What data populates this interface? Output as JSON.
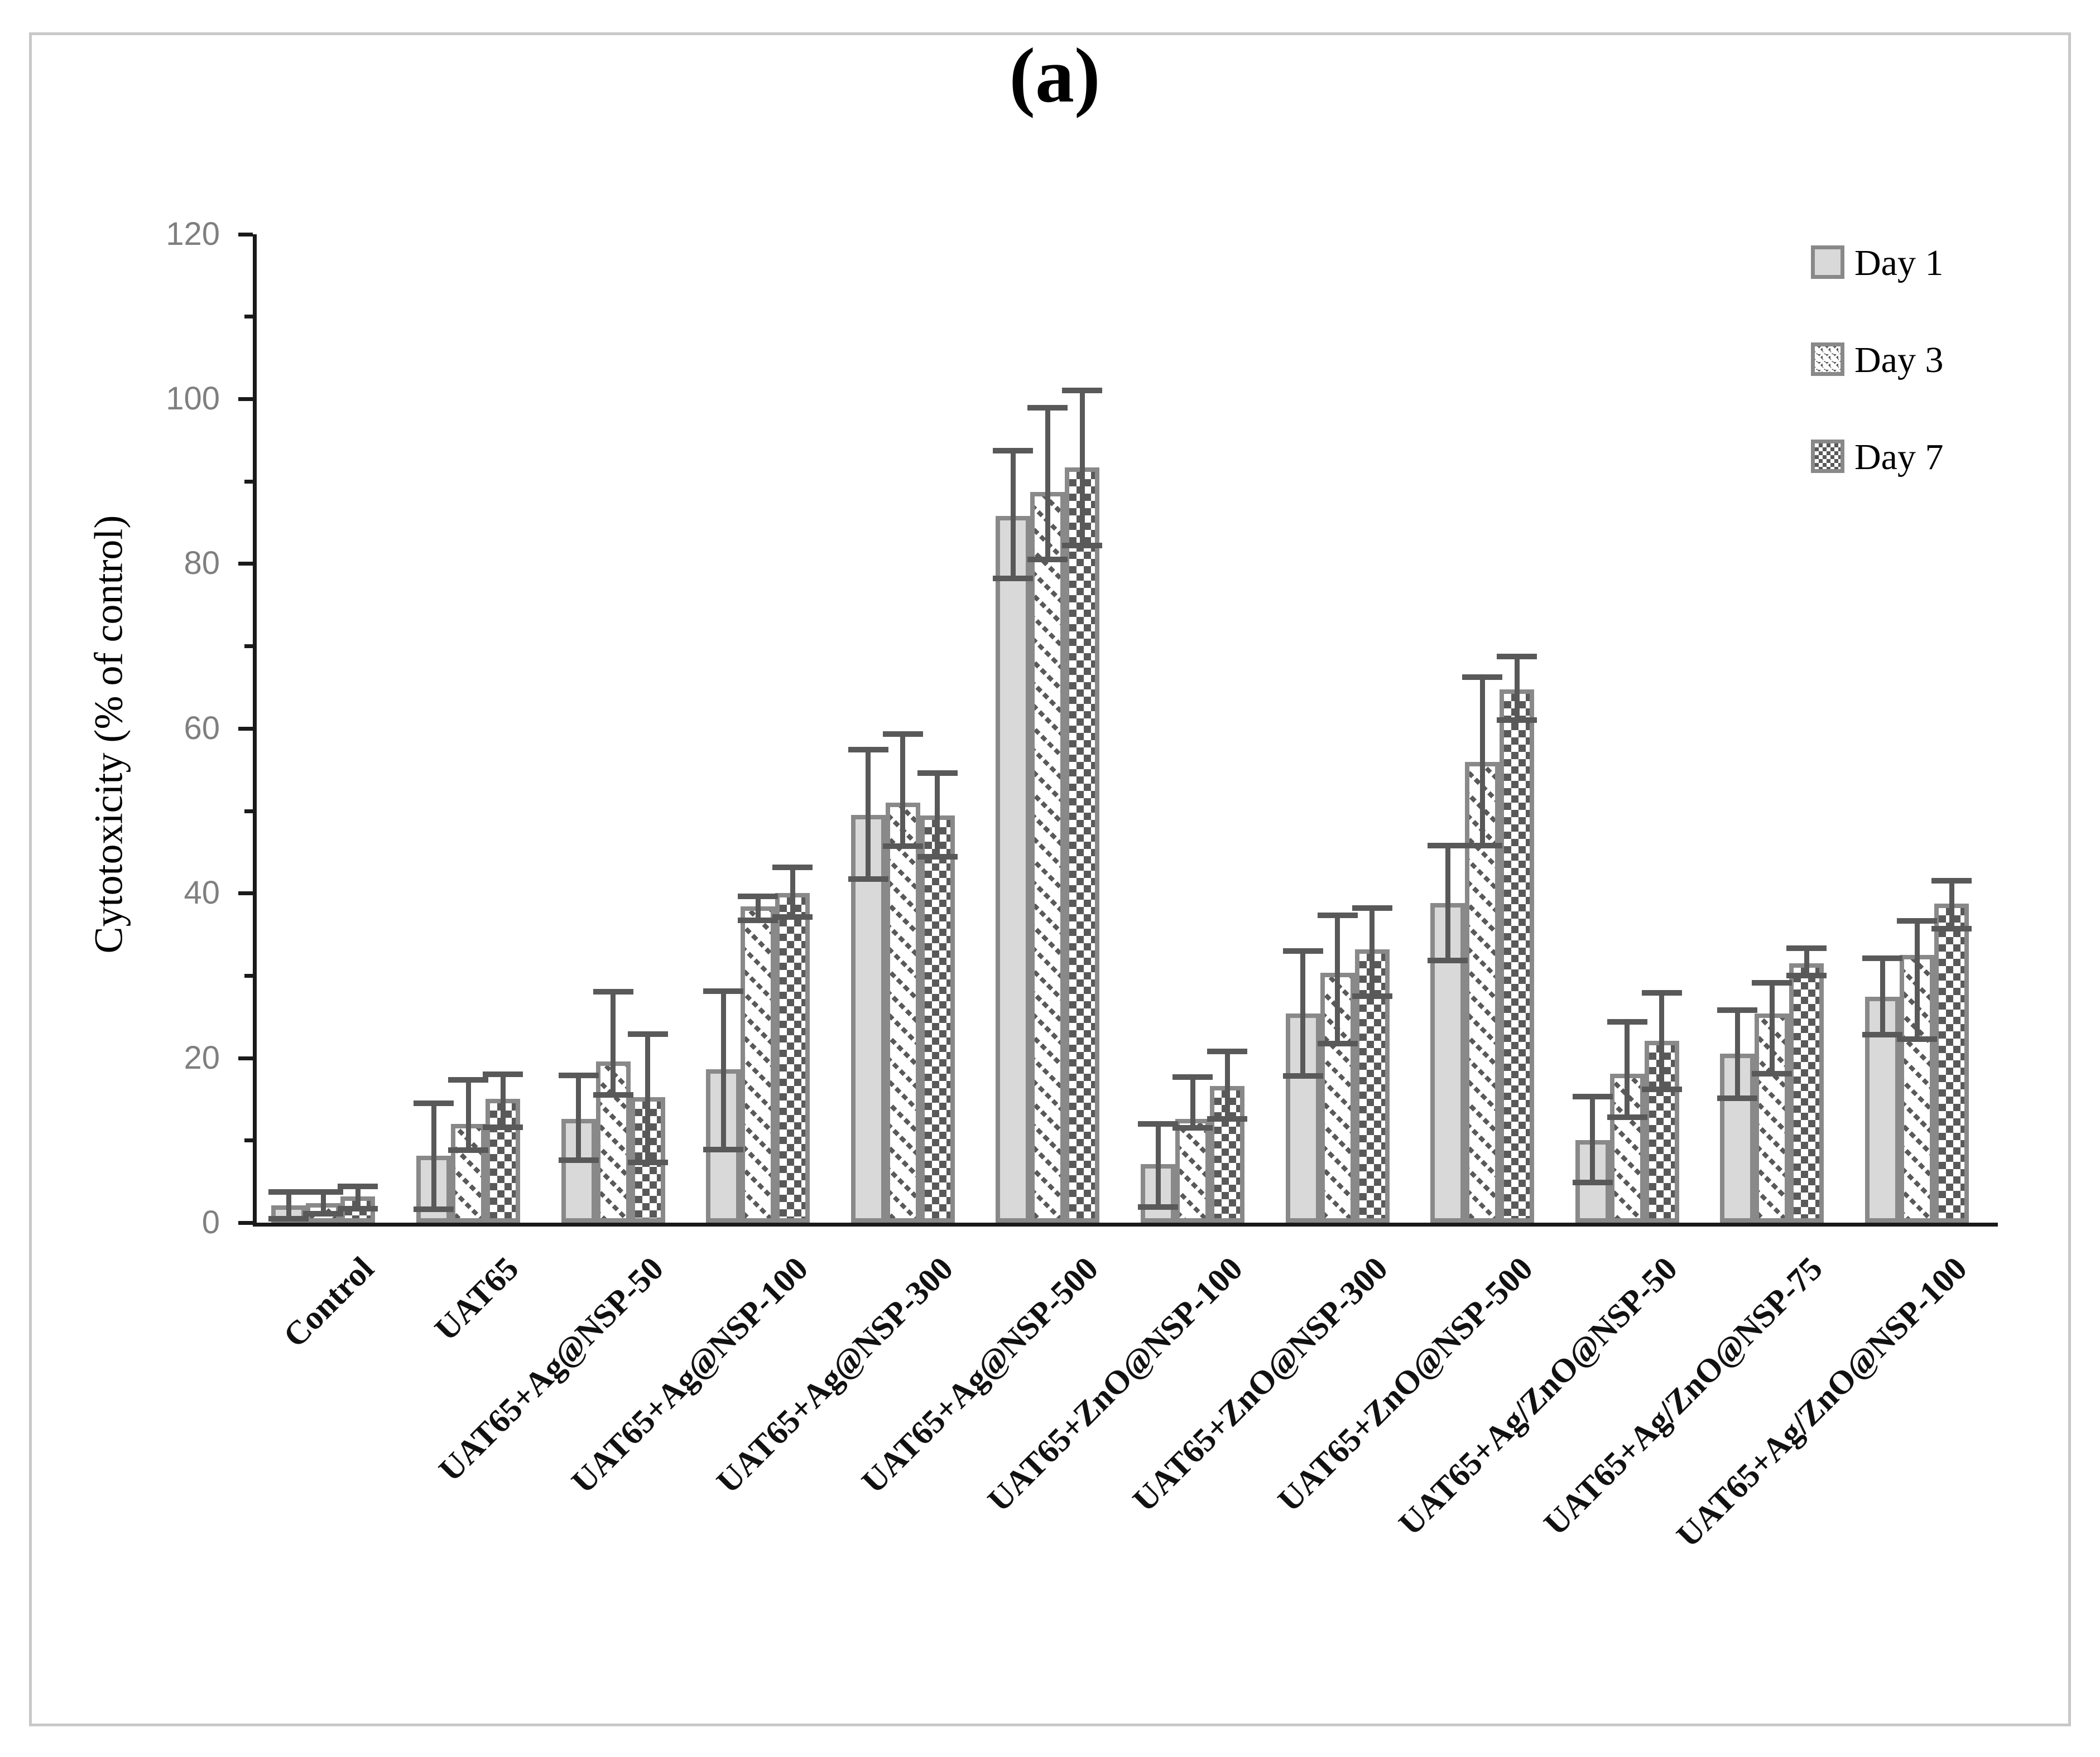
{
  "figure": {
    "title": "(a)",
    "panel_label": "(a)"
  },
  "chart_data": {
    "type": "bar",
    "title": "(a)",
    "xlabel": "",
    "ylabel": "Cytotoxicity (% of control)",
    "ylim": [
      0,
      120
    ],
    "ytick_step": 20,
    "ytick_minor_step": 10,
    "ytick_labels": [
      "0",
      "20",
      "40",
      "60",
      "80",
      "100",
      "120"
    ],
    "grid": false,
    "legend_position": "top-right",
    "categories": [
      "Control",
      "UAT65",
      "UAT65+Ag@NSP-50",
      "UAT65+Ag@NSP-100",
      "UAT65+Ag@NSP-300",
      "UAT65+Ag@NSP-500",
      "UAT65+ZnO@NSP-100",
      "UAT65+ZnO@NSP-300",
      "UAT65+ZnO@NSP-500",
      "UAT65+Ag/ZnO@NSP-50",
      "UAT65+Ag/ZnO@NSP-75",
      "UAT65+Ag/ZnO@NSP-100"
    ],
    "series": [
      {
        "name": "Day 1",
        "pattern": "solid-light-gray",
        "values": [
          2.1,
          8.1,
          12.6,
          18.6,
          49.5,
          85.8,
          7.1,
          25.4,
          38.8,
          10.0,
          20.5,
          27.4
        ],
        "err_up": [
          1.6,
          6.4,
          5.3,
          9.5,
          7.9,
          7.9,
          4.9,
          7.6,
          7.0,
          5.3,
          5.3,
          4.7
        ],
        "err_down": [
          1.6,
          6.5,
          5.0,
          9.7,
          7.8,
          7.6,
          5.2,
          7.6,
          7.0,
          5.1,
          5.4,
          4.6
        ]
      },
      {
        "name": "Day 3",
        "pattern": "diagonal-hatch",
        "values": [
          2.4,
          12.0,
          19.6,
          38.4,
          51.0,
          88.7,
          12.6,
          30.3,
          55.9,
          18.1,
          25.4,
          32.5
        ],
        "err_up": [
          1.3,
          5.3,
          8.4,
          1.2,
          8.3,
          10.2,
          5.1,
          7.0,
          10.3,
          6.3,
          3.7,
          4.1
        ],
        "err_down": [
          1.3,
          3.2,
          4.1,
          1.7,
          5.3,
          8.2,
          1.1,
          8.6,
          10.1,
          5.3,
          7.3,
          10.2
        ]
      },
      {
        "name": "Day 7",
        "pattern": "checker",
        "values": [
          3.2,
          15.0,
          15.2,
          40.0,
          49.4,
          91.7,
          16.6,
          33.2,
          64.7,
          22.1,
          31.5,
          38.7
        ],
        "err_up": [
          1.2,
          3.0,
          7.7,
          3.1,
          5.2,
          9.3,
          4.2,
          5.0,
          4.0,
          5.8,
          1.8,
          2.8
        ],
        "err_down": [
          1.5,
          3.4,
          7.9,
          2.9,
          5.0,
          9.5,
          4.0,
          5.7,
          3.7,
          5.9,
          1.5,
          3.0
        ]
      }
    ]
  },
  "legend": {
    "items": [
      {
        "label": "Day 1"
      },
      {
        "label": "Day 3"
      },
      {
        "label": "Day 7"
      }
    ]
  },
  "colors": {
    "bar_fill_day1": "#d9d9d9",
    "bar_border": "#898989",
    "pattern_dark": "#595959",
    "error_bar": "#595959",
    "axis": "#1a1a1a",
    "tick_label": "#7f7f7f",
    "frame_border": "#c8c8c8",
    "background": "#ffffff"
  }
}
